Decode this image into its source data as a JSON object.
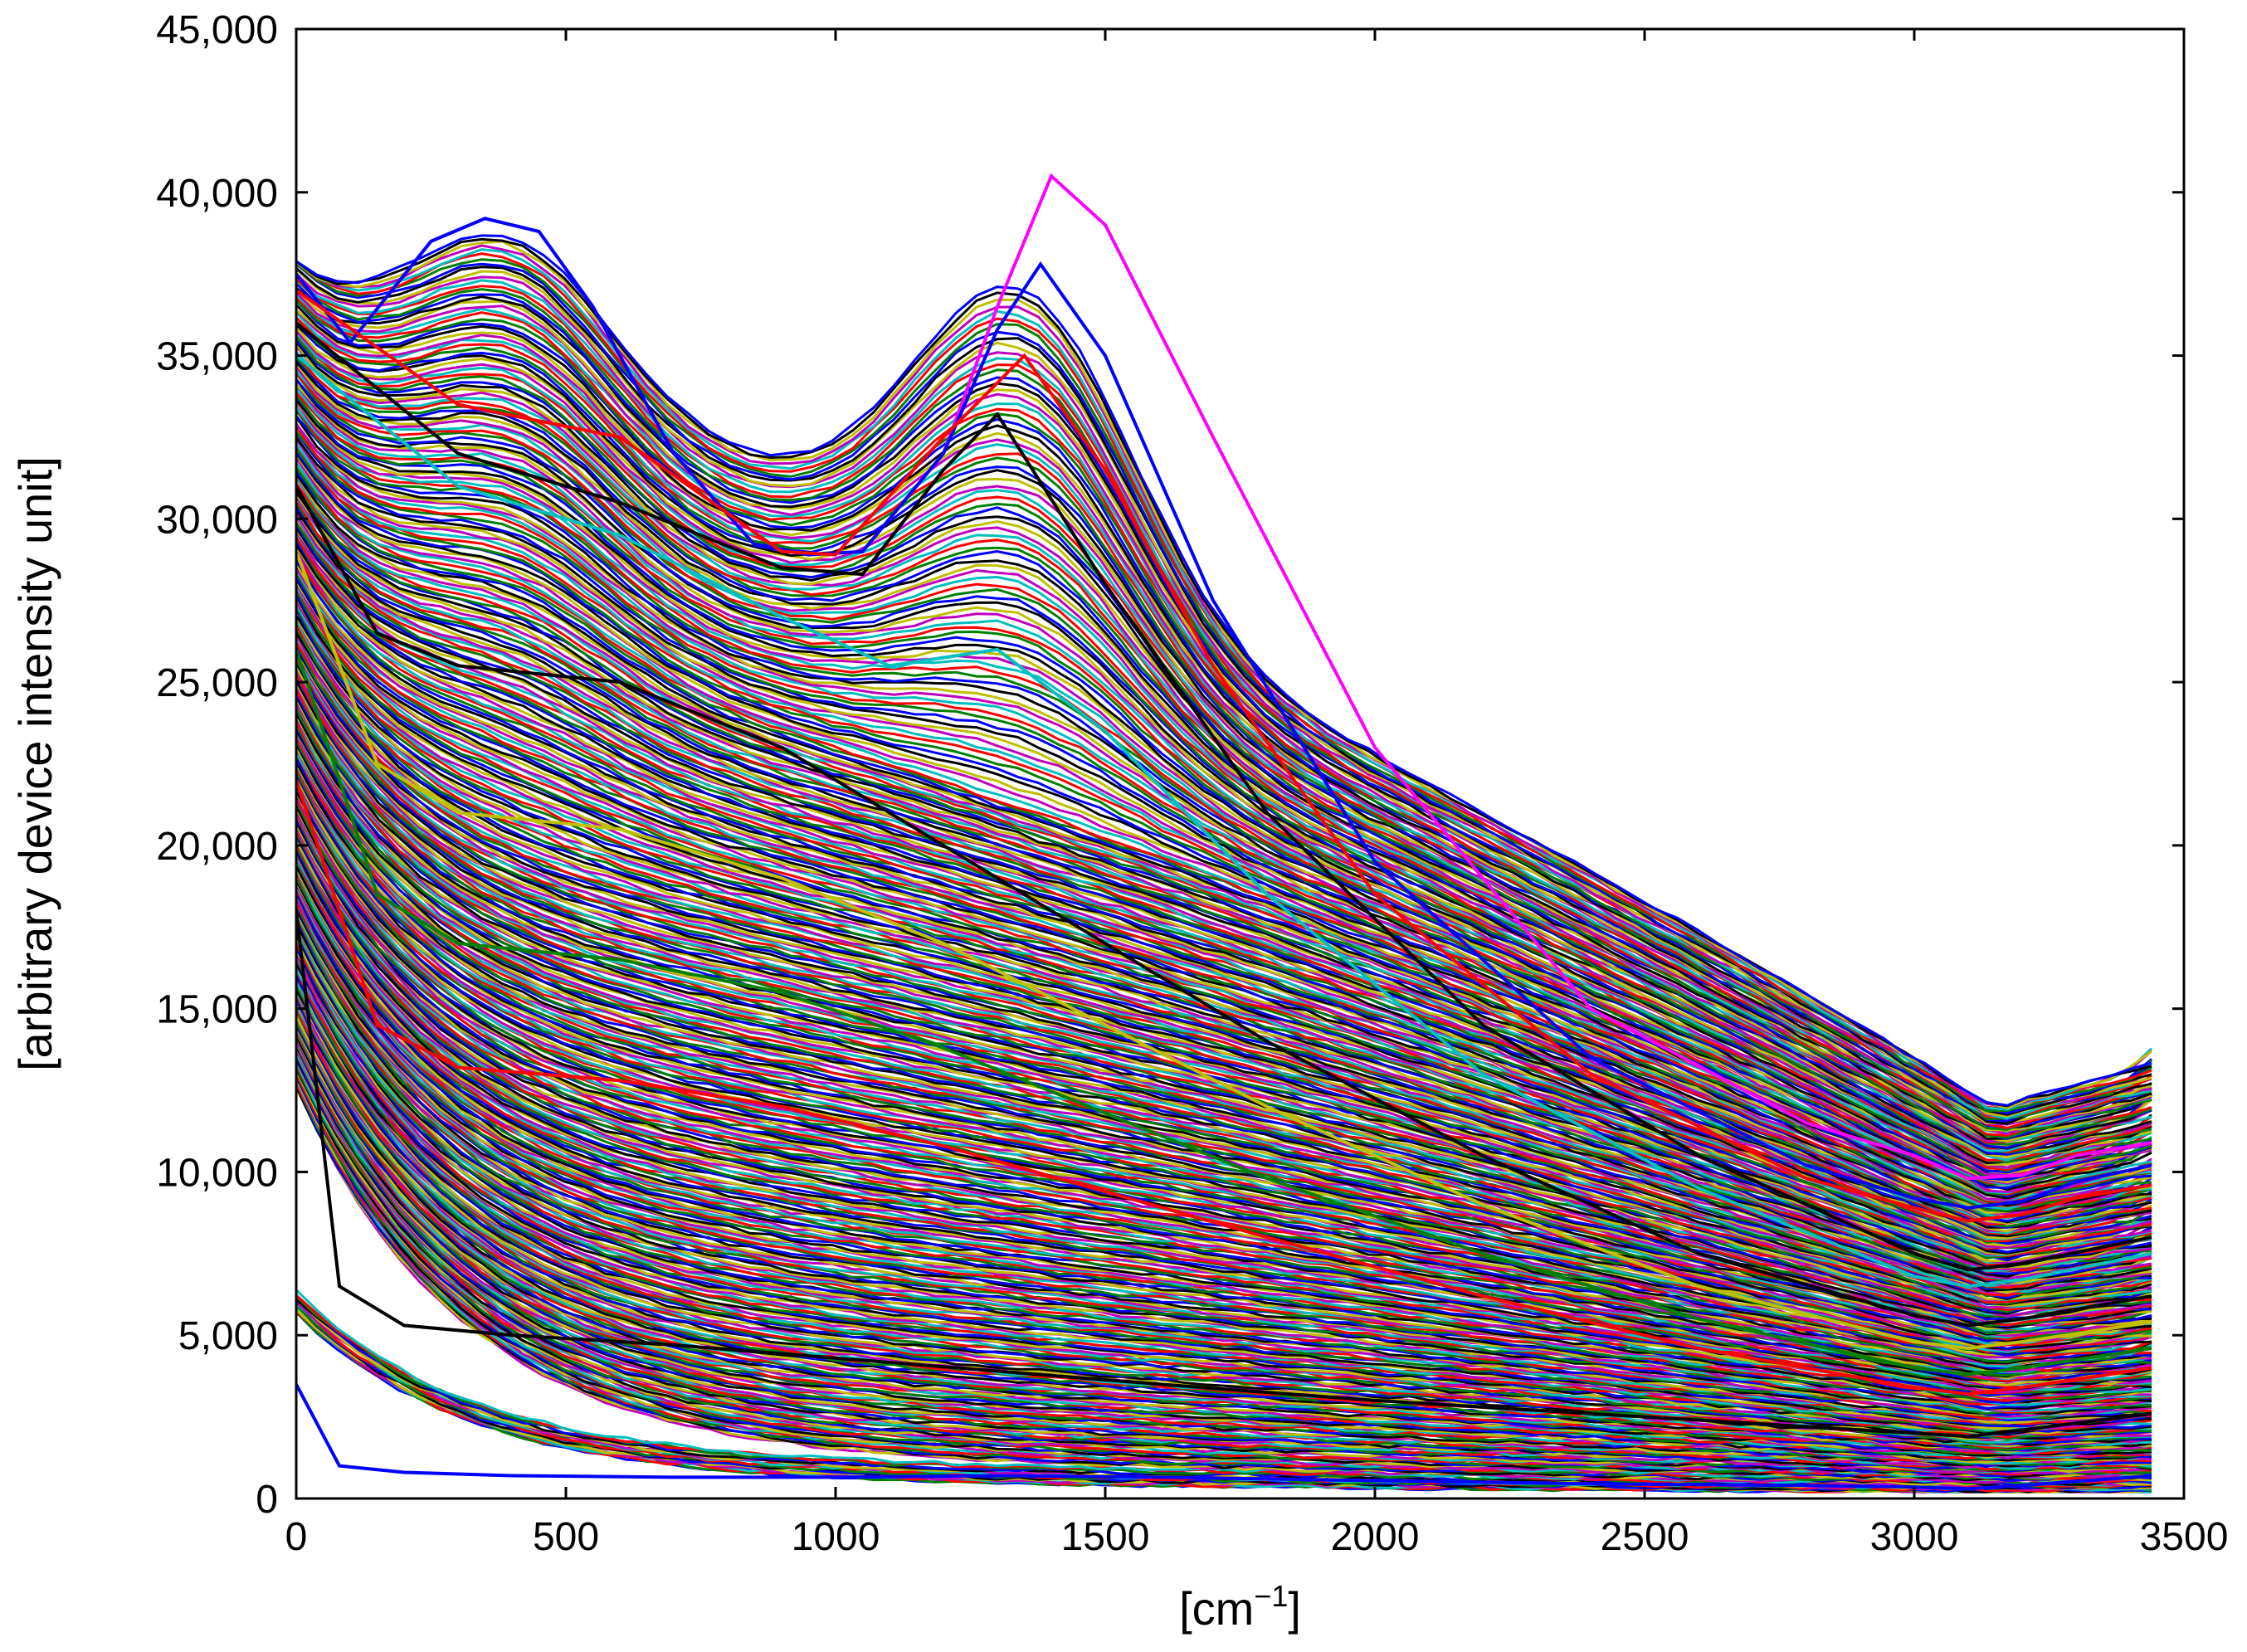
{
  "chart_data": {
    "type": "line",
    "title": "",
    "xlabel": "[cm",
    "xlabel_sup": "−1",
    "xlabel_end": "]",
    "ylabel": "[arbitrary device intensity unit]",
    "xlim": [
      0,
      3500
    ],
    "ylim": [
      0,
      45000
    ],
    "x_ticks": [
      0,
      500,
      1000,
      1500,
      2000,
      2500,
      3000,
      3500
    ],
    "x_tick_labels": [
      "0",
      "500",
      "1000",
      "1500",
      "2000",
      "2500",
      "3000",
      "3500"
    ],
    "y_ticks": [
      0,
      5000,
      10000,
      15000,
      20000,
      25000,
      30000,
      35000,
      40000,
      45000
    ],
    "y_tick_labels": [
      "0",
      "5,000",
      "10,000",
      "15,000",
      "20,000",
      "25,000",
      "30,000",
      "35,000",
      "40,000",
      "45,000"
    ],
    "grid": false,
    "legend": "none",
    "palette": [
      "#0000ff",
      "#008000",
      "#ff0000",
      "#00bfbf",
      "#bf00bf",
      "#bfbf00",
      "#000000"
    ],
    "x_end": 3440,
    "series_count_approx": 400,
    "representative_series": [
      {
        "color": "#ff00ff",
        "x": [
          0,
          100,
          250,
          350,
          450,
          550,
          700,
          850,
          950,
          1050,
          1200,
          1300,
          1400,
          1500,
          1700,
          2000,
          2400,
          2800,
          3000,
          3100,
          3200,
          3300,
          3440
        ],
        "y": [
          37500,
          35400,
          38500,
          39200,
          38800,
          36500,
          32000,
          29200,
          28900,
          29000,
          32000,
          36500,
          40500,
          39000,
          32500,
          23000,
          15000,
          11500,
          10500,
          9800,
          9900,
          10500,
          10900
        ]
      },
      {
        "color": "#0000ff",
        "x": [
          0,
          100,
          250,
          350,
          450,
          550,
          700,
          850,
          950,
          1050,
          1200,
          1300,
          1380,
          1500,
          1700,
          2000,
          2400,
          2800,
          3000,
          3100,
          3200,
          3300,
          3440
        ],
        "y": [
          37500,
          35400,
          38500,
          39200,
          38800,
          36500,
          32000,
          29200,
          28900,
          29000,
          32000,
          35800,
          37800,
          35000,
          27500,
          19500,
          13500,
          10200,
          9200,
          8900,
          9100,
          9700,
          10200
        ]
      },
      {
        "color": "#ff0000",
        "x": [
          0,
          300,
          600,
          900,
          1000,
          1200,
          1350,
          1500,
          1700,
          2000,
          2400,
          2800,
          3000,
          3100,
          3200,
          3300,
          3440
        ],
        "y": [
          37000,
          33500,
          32500,
          29000,
          28900,
          32500,
          35000,
          31500,
          25500,
          18500,
          13000,
          9800,
          8900,
          8500,
          8700,
          9200,
          9600
        ]
      },
      {
        "color": "#000000",
        "x": [
          0,
          300,
          600,
          900,
          1050,
          1200,
          1300,
          1500,
          1800,
          2200,
          2600,
          3000,
          3100,
          3200,
          3440
        ],
        "y": [
          36000,
          32000,
          30500,
          28500,
          28300,
          31500,
          33200,
          28000,
          21000,
          14500,
          10500,
          7500,
          7000,
          7200,
          8000
        ]
      },
      {
        "color": "#00bfbf",
        "x": [
          0,
          300,
          600,
          900,
          1100,
          1300,
          1500,
          1800,
          2200,
          2600,
          3000,
          3100,
          3200,
          3440
        ],
        "y": [
          35000,
          31000,
          29500,
          27000,
          25500,
          26000,
          23500,
          18500,
          13000,
          9500,
          6800,
          6500,
          6700,
          7500
        ]
      },
      {
        "color": "#000000",
        "x": [
          0,
          150,
          300,
          600,
          900,
          1200,
          1500,
          1800,
          2200,
          2600,
          3000,
          3100,
          3200,
          3440
        ],
        "y": [
          31000,
          26500,
          25500,
          25000,
          23000,
          20000,
          17000,
          14000,
          10500,
          7500,
          5600,
          5300,
          5500,
          6200
        ]
      },
      {
        "color": "#bfbf00",
        "x": [
          0,
          150,
          300,
          600,
          900,
          1200,
          1500,
          1800,
          2200,
          2600,
          3000,
          3100,
          3200,
          3440
        ],
        "y": [
          29000,
          22500,
          21000,
          20500,
          19000,
          17000,
          14500,
          12000,
          9000,
          6500,
          4800,
          4600,
          4800,
          5400
        ]
      },
      {
        "color": "#008000",
        "x": [
          0,
          150,
          300,
          600,
          900,
          1200,
          1500,
          1800,
          2200,
          2600,
          3000,
          3100,
          3200,
          3440
        ],
        "y": [
          26000,
          18500,
          17000,
          16500,
          15500,
          13800,
          11800,
          9800,
          7500,
          5500,
          4000,
          3800,
          4000,
          4600
        ]
      },
      {
        "color": "#ff0000",
        "x": [
          0,
          150,
          300,
          600,
          900,
          1200,
          1500,
          1800,
          2200,
          2600,
          3000,
          3100,
          3200,
          3440
        ],
        "y": [
          22000,
          14500,
          13200,
          12800,
          12000,
          10800,
          9400,
          8000,
          6200,
          4600,
          3400,
          3200,
          3400,
          4000
        ]
      },
      {
        "color": "#000000",
        "x": [
          0,
          80,
          200,
          400,
          700,
          1000,
          1300,
          1600,
          2000,
          2400,
          2800,
          3000,
          3100,
          3200,
          3440
        ],
        "y": [
          18000,
          6500,
          5300,
          5000,
          4700,
          4300,
          3900,
          3500,
          3000,
          2600,
          2200,
          2000,
          1900,
          2100,
          2600
        ]
      },
      {
        "color": "#0000ff",
        "x": [
          0,
          80,
          200,
          400,
          700,
          1000,
          1300,
          1600,
          2000,
          2400,
          2800,
          3000,
          3100,
          3200,
          3440
        ],
        "y": [
          3500,
          1000,
          800,
          700,
          650,
          650,
          700,
          650,
          550,
          450,
          400,
          350,
          300,
          400,
          700
        ]
      }
    ]
  }
}
